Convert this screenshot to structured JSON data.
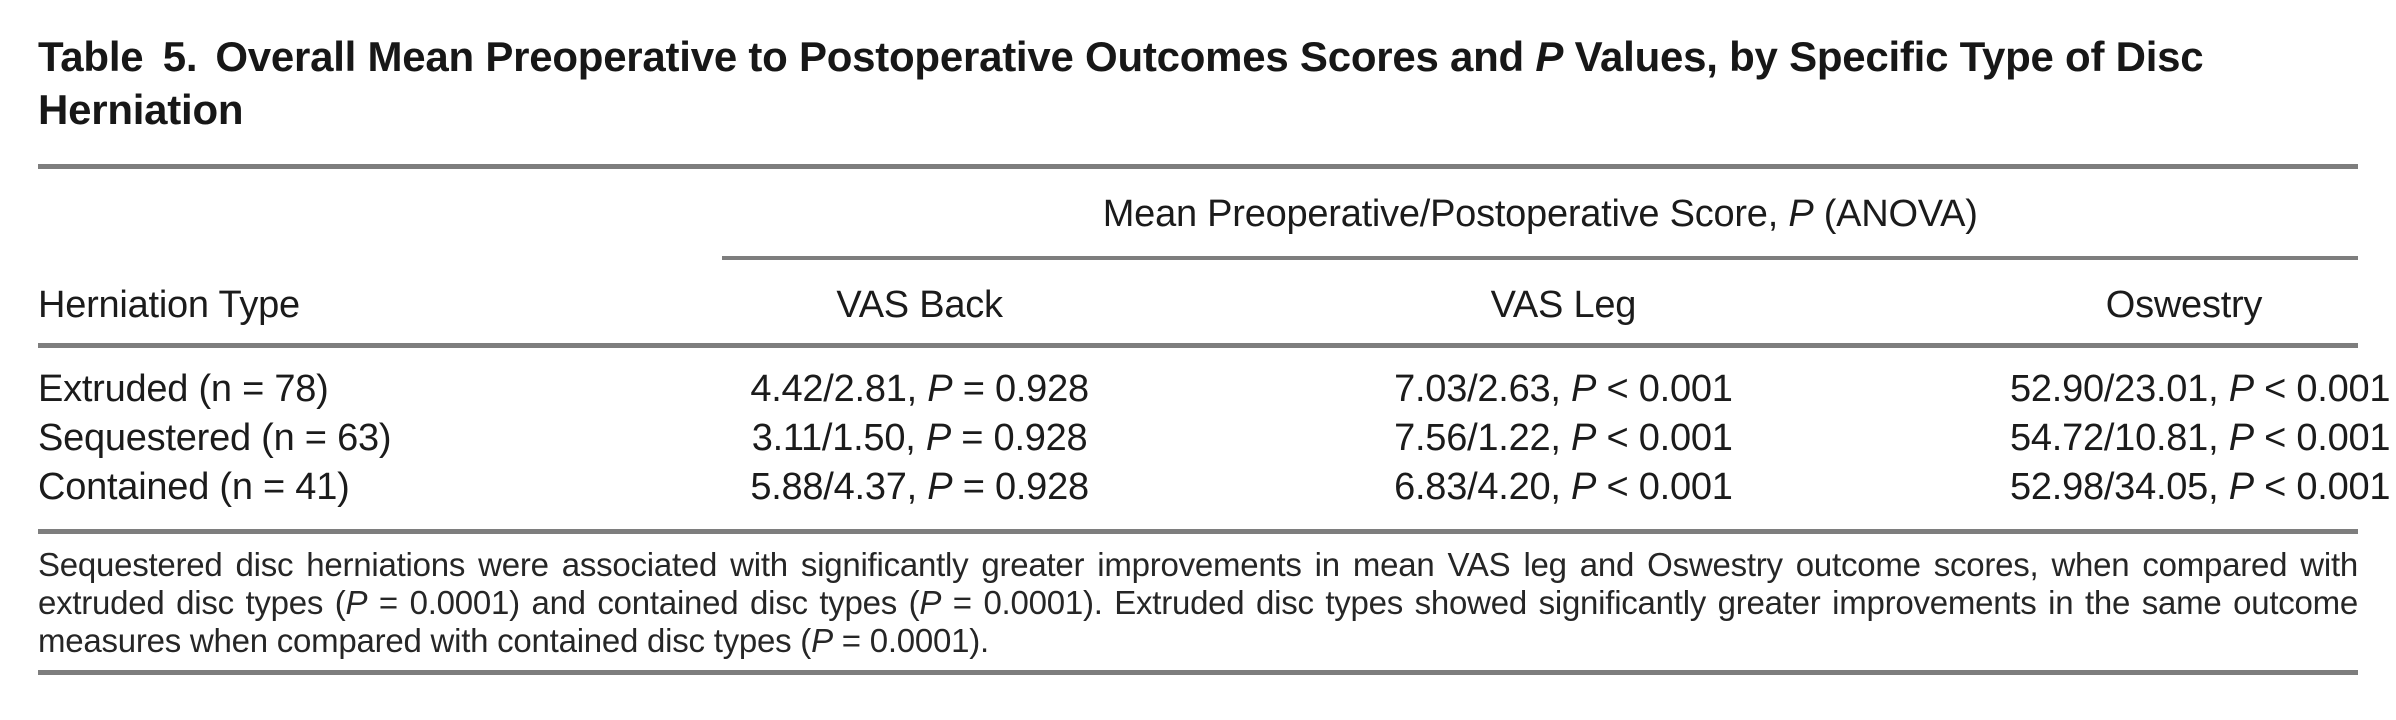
{
  "colors": {
    "text": "#1b1b1b",
    "rule": "#7e7e7e",
    "background": "#ffffff"
  },
  "title": {
    "label": "Table 5.",
    "segments": [
      {
        "t": "Overall Mean Preoperative to Postoperative Outcomes Scores and "
      },
      {
        "t": "P",
        "i": true
      },
      {
        "t": " Values, by Specific Type of Disc Herniation"
      }
    ]
  },
  "table": {
    "spanner": {
      "segments": [
        {
          "t": "Mean Preoperative/Postoperative Score, "
        },
        {
          "t": "P",
          "i": true
        },
        {
          "t": " (ANOVA)"
        }
      ]
    },
    "columns": [
      "Herniation Type",
      "VAS Back",
      "VAS Leg",
      "Oswestry"
    ],
    "rows": [
      {
        "label": "Extruded (n = 78)",
        "cells": [
          [
            {
              "t": "4.42/2.81, "
            },
            {
              "t": "P",
              "i": true
            },
            {
              "t": " = 0.928"
            }
          ],
          [
            {
              "t": "7.03/2.63, "
            },
            {
              "t": "P",
              "i": true
            },
            {
              "t": " < 0.001"
            }
          ],
          [
            {
              "t": "52.90/23.01, "
            },
            {
              "t": "P",
              "i": true
            },
            {
              "t": " < 0.001"
            }
          ]
        ]
      },
      {
        "label": "Sequestered (n = 63)",
        "cells": [
          [
            {
              "t": "3.11/1.50, "
            },
            {
              "t": "P",
              "i": true
            },
            {
              "t": " = 0.928"
            }
          ],
          [
            {
              "t": "7.56/1.22, "
            },
            {
              "t": "P",
              "i": true
            },
            {
              "t": " < 0.001"
            }
          ],
          [
            {
              "t": "54.72/10.81, "
            },
            {
              "t": "P",
              "i": true
            },
            {
              "t": " < 0.001"
            }
          ]
        ]
      },
      {
        "label": "Contained (n = 41)",
        "cells": [
          [
            {
              "t": "5.88/4.37, "
            },
            {
              "t": "P",
              "i": true
            },
            {
              "t": " = 0.928"
            }
          ],
          [
            {
              "t": "6.83/4.20, "
            },
            {
              "t": "P",
              "i": true
            },
            {
              "t": " < 0.001"
            }
          ],
          [
            {
              "t": "52.98/34.05, "
            },
            {
              "t": "P",
              "i": true
            },
            {
              "t": " < 0.001"
            }
          ]
        ]
      }
    ]
  },
  "footnote": {
    "segments": [
      {
        "t": "Sequestered disc herniations were associated with significantly greater improvements in mean VAS leg and Oswestry outcome scores, when compared with extruded disc types ("
      },
      {
        "t": "P",
        "i": true
      },
      {
        "t": " = 0.0001) and contained disc types ("
      },
      {
        "t": "P",
        "i": true
      },
      {
        "t": " = 0.0001). Extruded disc types showed significantly greater improvements in the same outcome measures when compared with contained disc types ("
      },
      {
        "t": "P",
        "i": true
      },
      {
        "t": " = 0.0001)."
      }
    ]
  }
}
